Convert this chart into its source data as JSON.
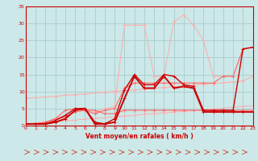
{
  "x": [
    0,
    1,
    2,
    3,
    4,
    5,
    6,
    7,
    8,
    9,
    10,
    11,
    12,
    13,
    14,
    15,
    16,
    17,
    18,
    19,
    20,
    21,
    22,
    23
  ],
  "line_dark1": [
    0.5,
    0.5,
    0.5,
    1.0,
    2.0,
    4.5,
    5.0,
    0.5,
    0.5,
    1.0,
    8.0,
    14.5,
    11.0,
    11.0,
    14.5,
    11.0,
    11.5,
    11.0,
    4.0,
    4.0,
    4.0,
    4.0,
    4.0,
    4.0
  ],
  "line_dark2": [
    0.5,
    0.5,
    0.5,
    1.5,
    3.0,
    5.0,
    5.0,
    1.0,
    0.5,
    2.0,
    10.5,
    15.0,
    12.0,
    12.0,
    15.0,
    14.5,
    12.0,
    11.5,
    4.5,
    4.5,
    4.5,
    4.5,
    22.5,
    23.0
  ],
  "line_mid1": [
    0.5,
    0.5,
    1.0,
    2.0,
    4.5,
    5.0,
    4.5,
    4.5,
    3.5,
    3.5,
    4.5,
    4.5,
    4.5,
    4.5,
    4.5,
    4.5,
    4.5,
    4.5,
    4.5,
    4.5,
    4.5,
    4.5,
    4.5,
    4.5
  ],
  "line_light_diag": [
    8.0,
    8.2,
    8.4,
    8.6,
    8.9,
    9.1,
    9.3,
    9.6,
    9.8,
    10.0,
    10.3,
    10.5,
    10.7,
    11.0,
    11.2,
    11.4,
    11.7,
    11.9,
    12.1,
    12.4,
    12.6,
    12.8,
    13.1,
    14.5
  ],
  "line_light2_diag": [
    0.5,
    0.7,
    0.9,
    1.2,
    1.4,
    1.6,
    1.9,
    2.1,
    2.3,
    2.6,
    2.8,
    3.0,
    3.3,
    3.5,
    3.7,
    4.0,
    4.2,
    4.4,
    4.7,
    4.9,
    5.1,
    5.4,
    5.6,
    5.8
  ],
  "line_light_peak": [
    0.5,
    0.5,
    1.0,
    2.0,
    3.0,
    5.0,
    5.0,
    4.0,
    5.0,
    5.5,
    29.5,
    29.5,
    29.5,
    14.5,
    14.5,
    30.5,
    32.5,
    29.5,
    25.0,
    14.5,
    14.5,
    14.5,
    22.5,
    23.0
  ],
  "line_mid2": [
    0.5,
    0.5,
    1.0,
    2.0,
    2.5,
    4.0,
    4.5,
    3.5,
    4.5,
    5.0,
    11.0,
    12.5,
    12.5,
    12.5,
    12.5,
    12.5,
    12.5,
    12.5,
    12.5,
    12.5,
    14.5,
    14.5,
    22.5,
    23.0
  ],
  "background_color": "#cce8e8",
  "grid_color": "#aacccc",
  "xlabel": "Vent moyen/en rafales ( km/h )",
  "xlim": [
    0,
    23
  ],
  "ylim": [
    0,
    35
  ],
  "yticks": [
    0,
    5,
    10,
    15,
    20,
    25,
    30,
    35
  ],
  "xticks": [
    0,
    1,
    2,
    3,
    4,
    5,
    6,
    7,
    8,
    9,
    10,
    11,
    12,
    13,
    14,
    15,
    16,
    17,
    18,
    19,
    20,
    21,
    22,
    23
  ],
  "tick_color": "#cc0000",
  "spine_color": "#cc0000",
  "arrow_color": "#cc2200"
}
